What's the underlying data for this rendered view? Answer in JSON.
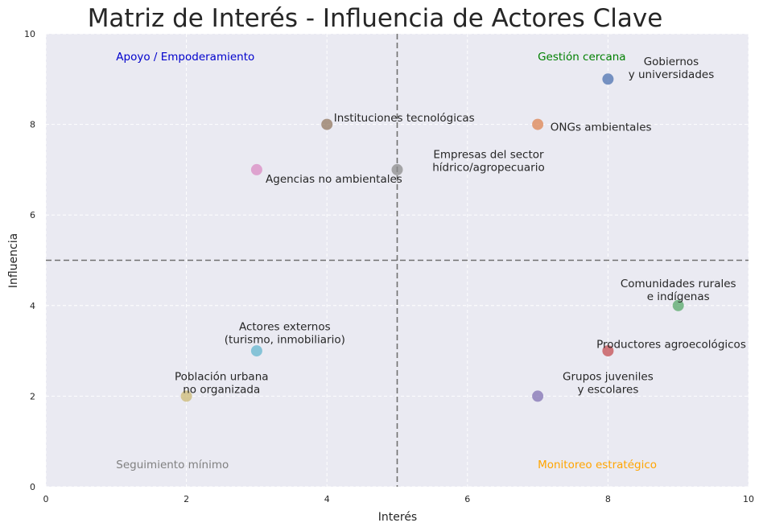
{
  "chart_data": {
    "type": "scatter",
    "title": "Matriz de Interés - Influencia de Actores Clave",
    "xlabel": "Interés",
    "ylabel": "Influencia",
    "xlim": [
      0,
      10
    ],
    "ylim": [
      0,
      10
    ],
    "xticks": [
      "0",
      "2",
      "4",
      "6",
      "8",
      "10"
    ],
    "yticks": [
      "0",
      "2",
      "4",
      "6",
      "8",
      "10"
    ],
    "grid": true,
    "divider_x": 5,
    "divider_y": 5,
    "points": [
      {
        "lines": [
          "Gobiernos",
          "y universidades"
        ],
        "x": 8,
        "y": 9,
        "color": "#4c72b0"
      },
      {
        "lines": [
          "ONGs ambientales"
        ],
        "x": 7,
        "y": 8,
        "color": "#dd8452"
      },
      {
        "lines": [
          "Comunidades rurales",
          "e indígenas"
        ],
        "x": 9,
        "y": 4,
        "color": "#55a868"
      },
      {
        "lines": [
          "Productores agroecológicos"
        ],
        "x": 8,
        "y": 3,
        "color": "#c44e52"
      },
      {
        "lines": [
          "Grupos juveniles",
          "y escolares"
        ],
        "x": 7,
        "y": 2,
        "color": "#8172b3"
      },
      {
        "lines": [
          "Instituciones tecnológicas"
        ],
        "x": 4,
        "y": 8,
        "color": "#937860"
      },
      {
        "lines": [
          "Agencias no ambientales"
        ],
        "x": 3,
        "y": 7,
        "color": "#da8bc3"
      },
      {
        "lines": [
          "Empresas del sector",
          "hídrico/agropecuario"
        ],
        "x": 5,
        "y": 7,
        "color": "#8c8c8c"
      },
      {
        "lines": [
          "Población urbana",
          "no organizada"
        ],
        "x": 2,
        "y": 2,
        "color": "#ccb974"
      },
      {
        "lines": [
          "Actores externos",
          "(turismo, inmobiliario)"
        ],
        "x": 3,
        "y": 3,
        "color": "#64b5cd"
      }
    ],
    "quadrant_labels": [
      {
        "text": "Apoyo / Empoderamiento",
        "color": "#0000cc"
      },
      {
        "text": "Gestión cercana",
        "color": "#008000"
      },
      {
        "text": "Seguimiento mínimo",
        "color": "#808080"
      },
      {
        "text": "Monitoreo estratégico",
        "color": "#ffa500"
      }
    ]
  }
}
